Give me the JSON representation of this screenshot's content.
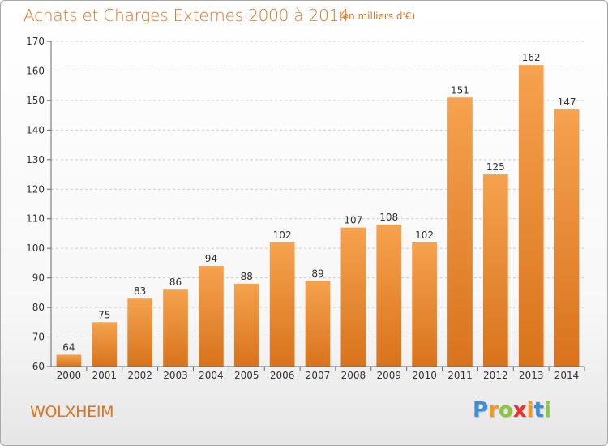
{
  "chart_data": {
    "type": "bar",
    "title": "Achats et Charges Externes 2000 à 2014",
    "subtitle": "(en milliers d'€)",
    "categories": [
      "2000",
      "2001",
      "2002",
      "2003",
      "2004",
      "2005",
      "2006",
      "2007",
      "2008",
      "2009",
      "2010",
      "2011",
      "2012",
      "2013",
      "2014"
    ],
    "values": [
      64,
      75,
      83,
      86,
      94,
      88,
      102,
      89,
      107,
      108,
      102,
      151,
      125,
      162,
      147
    ],
    "ylim": [
      60,
      170
    ],
    "yticks": [
      60,
      70,
      80,
      90,
      100,
      110,
      120,
      130,
      140,
      150,
      160,
      170
    ],
    "grid": true,
    "bar_color_top": "#f6a24e",
    "bar_color_bottom": "#d8731c"
  },
  "place": "WOLXHEIM",
  "logo": {
    "letters": [
      "P",
      "r",
      "o",
      "x",
      "i",
      "t",
      "i"
    ],
    "colors": [
      "#3a8fd6",
      "#f39a1e",
      "#8cc63e",
      "#e8322c",
      "#f39a1e",
      "#3a8fd6",
      "#8cc63e"
    ]
  }
}
